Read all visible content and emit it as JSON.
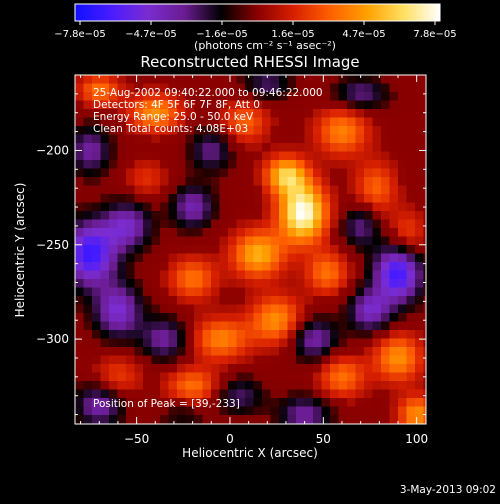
{
  "colorbar": {
    "ticks": [
      "−7.8e−05",
      "−4.7e−05",
      "−1.6e−05",
      "1.6e−05",
      "4.7e−05",
      "7.8e−05"
    ],
    "unit_label": "(photons cm⁻² s⁻¹ asec⁻²)",
    "colors": [
      "#1010ff",
      "#4a1cff",
      "#7a2cd0",
      "#6a1c90",
      "#000000",
      "#8a0000",
      "#d82000",
      "#ff6000",
      "#ffa000",
      "#ffe060",
      "#ffffff"
    ]
  },
  "chart_data": {
    "type": "heatmap",
    "title": "Reconstructed RHESSI Image",
    "xlabel": "Heliocentric X (arcsec)",
    "ylabel": "Heliocentric Y (arcsec)",
    "xlim": [
      -83,
      105
    ],
    "ylim": [
      -345,
      -160
    ],
    "x_ticks": [
      -50,
      0,
      50,
      100
    ],
    "y_ticks": [
      -200,
      -250,
      -300
    ],
    "x_tick_labels": [
      "−50",
      "0",
      "50",
      "100"
    ],
    "y_tick_labels": [
      "−200",
      "−250",
      "−300"
    ],
    "value_range": [
      -7.8e-05,
      7.8e-05
    ],
    "annotations": [
      "25-Aug-2002 09:40:22.000 to 09:46:22.000",
      "Detectors: 4F 5F 6F 7F 8F, Att 0",
      "Energy Range: 25.0 - 50.0 keV",
      "Clean    Total counts: 4.08E+03"
    ],
    "peak_text": "Position of Peak = [39,-233]",
    "peak": [
      39,
      -233
    ],
    "sources": [
      {
        "x": 39,
        "y": -233,
        "a": 1.0,
        "sx": 9,
        "sy": 11
      },
      {
        "x": 30,
        "y": -213,
        "a": 0.7,
        "sx": 8,
        "sy": 7
      },
      {
        "x": 15,
        "y": -255,
        "a": 0.65,
        "sx": 10,
        "sy": 9
      },
      {
        "x": 52,
        "y": -265,
        "a": 0.45,
        "sx": 8,
        "sy": 8
      },
      {
        "x": 25,
        "y": -290,
        "a": 0.55,
        "sx": 10,
        "sy": 9
      },
      {
        "x": -5,
        "y": -300,
        "a": 0.5,
        "sx": 11,
        "sy": 8
      },
      {
        "x": -20,
        "y": -268,
        "a": 0.45,
        "sx": 9,
        "sy": 8
      },
      {
        "x": 8,
        "y": -185,
        "a": 0.4,
        "sx": 9,
        "sy": 8
      },
      {
        "x": -40,
        "y": -180,
        "a": 0.55,
        "sx": 10,
        "sy": 7
      },
      {
        "x": -70,
        "y": -168,
        "a": 0.45,
        "sx": 8,
        "sy": 6
      },
      {
        "x": 60,
        "y": -190,
        "a": 0.5,
        "sx": 10,
        "sy": 9
      },
      {
        "x": 78,
        "y": -220,
        "a": 0.4,
        "sx": 8,
        "sy": 10
      },
      {
        "x": 95,
        "y": -245,
        "a": 0.35,
        "sx": 7,
        "sy": 9
      },
      {
        "x": 90,
        "y": -310,
        "a": 0.55,
        "sx": 9,
        "sy": 9
      },
      {
        "x": 60,
        "y": -320,
        "a": 0.45,
        "sx": 9,
        "sy": 8
      },
      {
        "x": 100,
        "y": -340,
        "a": 0.55,
        "sx": 7,
        "sy": 7
      },
      {
        "x": -20,
        "y": -325,
        "a": 0.45,
        "sx": 10,
        "sy": 7
      },
      {
        "x": -60,
        "y": -320,
        "a": 0.3,
        "sx": 9,
        "sy": 8
      },
      {
        "x": -45,
        "y": -215,
        "a": 0.25,
        "sx": 8,
        "sy": 7
      },
      {
        "x": -75,
        "y": -255,
        "a": -0.85,
        "sx": 10,
        "sy": 12
      },
      {
        "x": -55,
        "y": -240,
        "a": -0.55,
        "sx": 9,
        "sy": 9
      },
      {
        "x": -60,
        "y": -285,
        "a": -0.6,
        "sx": 9,
        "sy": 10
      },
      {
        "x": -20,
        "y": -230,
        "a": -0.5,
        "sx": 8,
        "sy": 8
      },
      {
        "x": -35,
        "y": -300,
        "a": -0.45,
        "sx": 9,
        "sy": 8
      },
      {
        "x": 90,
        "y": -265,
        "a": -0.85,
        "sx": 9,
        "sy": 11
      },
      {
        "x": 75,
        "y": -285,
        "a": -0.55,
        "sx": 8,
        "sy": 8
      },
      {
        "x": 70,
        "y": -240,
        "a": -0.4,
        "sx": 7,
        "sy": 8
      },
      {
        "x": 45,
        "y": -300,
        "a": -0.5,
        "sx": 9,
        "sy": 8
      },
      {
        "x": 40,
        "y": -340,
        "a": -0.45,
        "sx": 10,
        "sy": 7
      },
      {
        "x": 70,
        "y": -170,
        "a": -0.4,
        "sx": 10,
        "sy": 6
      },
      {
        "x": -10,
        "y": -200,
        "a": -0.4,
        "sx": 8,
        "sy": 8
      },
      {
        "x": 5,
        "y": -330,
        "a": -0.35,
        "sx": 9,
        "sy": 7
      },
      {
        "x": -75,
        "y": -200,
        "a": -0.45,
        "sx": 8,
        "sy": 9
      },
      {
        "x": -70,
        "y": -335,
        "a": -0.5,
        "sx": 9,
        "sy": 8
      },
      {
        "x": 20,
        "y": -165,
        "a": -0.35,
        "sx": 9,
        "sy": 6
      },
      {
        "x": -25,
        "y": -340,
        "a": -0.2,
        "sx": 9,
        "sy": 6
      }
    ]
  },
  "footer": {
    "timestamp": "3-May-2013 09:02"
  }
}
